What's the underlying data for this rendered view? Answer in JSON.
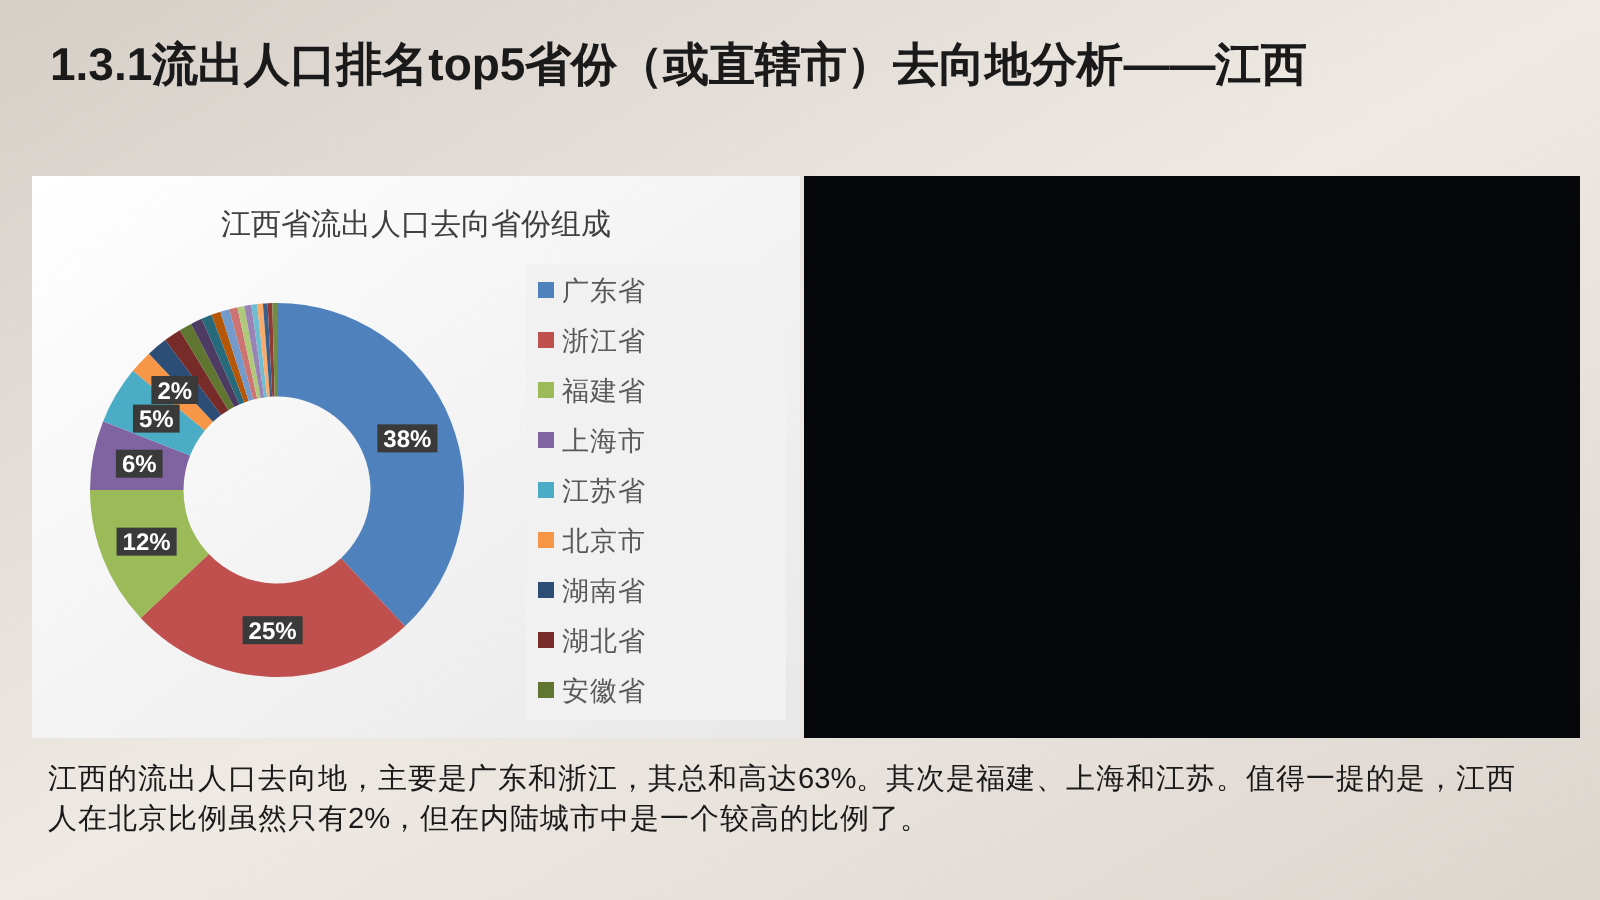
{
  "chart_data": {
    "type": "donut",
    "title": "江西省流出人口去向省份组成",
    "categories": [
      "广东省",
      "浙江省",
      "福建省",
      "上海市",
      "江苏省",
      "北京市",
      "湖南省",
      "湖北省",
      "安徽省",
      null,
      null,
      null,
      null,
      null,
      null,
      null,
      null,
      null,
      null,
      null,
      null
    ],
    "values": [
      38,
      25,
      12,
      6,
      5,
      2,
      1.8,
      1.5,
      1.1,
      1.0,
      0.9,
      0.8,
      0.8,
      0.7,
      0.6,
      0.6,
      0.5,
      0.5,
      0.4,
      0.4,
      0.4
    ],
    "colors": [
      "#4f81bd",
      "#c0504d",
      "#9bbb59",
      "#8064a2",
      "#4bacc6",
      "#f79646",
      "#2c4d75",
      "#772c2a",
      "#5f7530",
      "#4d3b62",
      "#276a7c",
      "#b65708",
      "#729aca",
      "#cd7371",
      "#afc97a",
      "#9983b5",
      "#6fbdd1",
      "#f9ab6b",
      "#3a5f8b",
      "#8e3b38",
      "#728c43"
    ],
    "value_labels": [
      "38%",
      "25%",
      "12%",
      "6%",
      "5%",
      "2%",
      null,
      null,
      null,
      null,
      null,
      null,
      null,
      null,
      null,
      null,
      null,
      null,
      null,
      null,
      null
    ],
    "legend": "right",
    "annotations": [
      "1.3.1流出人口排名top5省份（或直辖市）去向地分析——江西",
      "江西的流出人口去向地，主要是广东和浙江，其总和高达63%。其次是福建、上海和江苏。值得一提的是，江西人在北京比例虽然只有2%，但在内陆城市中是一个较高的比例了。"
    ]
  }
}
